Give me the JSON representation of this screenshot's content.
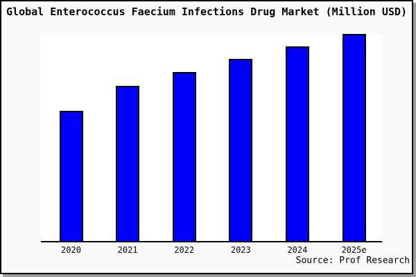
{
  "frame": {
    "title": "Global Enterococcus Faecium Infections Drug Market (Million USD)",
    "source_note": "Source: Prof Research"
  },
  "chart_data": {
    "type": "bar",
    "title": "Global Enterococcus Faecium Infections Drug Market (Million USD)",
    "categories": [
      "2020",
      "2021",
      "2022",
      "2023",
      "2024",
      "2025e"
    ],
    "values_relative_pct": [
      62.7,
      74.7,
      81.3,
      87.7,
      93.7,
      99.7
    ],
    "xlabel": "",
    "ylabel": "",
    "y_axis_ticks": [],
    "grid": false,
    "legend": false,
    "bar_fill_color": "#0000ff",
    "bar_border_color": "#000000",
    "plot_background": "#ffffff",
    "outer_background": "#fafafa",
    "source": "Source: Prof Research"
  }
}
